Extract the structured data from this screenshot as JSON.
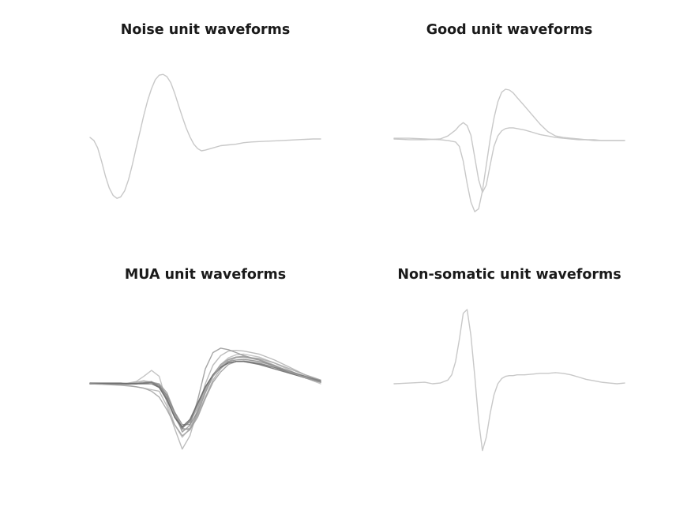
{
  "chart_data": [
    {
      "type": "line",
      "title": "Noise unit waveforms",
      "axes_visible": false,
      "xlim": [
        0,
        60
      ],
      "ylim": [
        -1.0,
        1.0
      ],
      "series": [
        {
          "color": "#c8c8c8",
          "x": [
            0,
            1,
            2,
            3,
            4,
            5,
            6,
            7,
            8,
            9,
            10,
            11,
            12,
            13,
            14,
            15,
            16,
            17,
            18,
            19,
            20,
            21,
            22,
            23,
            24,
            25,
            26,
            27,
            28,
            29,
            30,
            32,
            34,
            36,
            38,
            40,
            42,
            44,
            46,
            48,
            50,
            52,
            54,
            56,
            58,
            60
          ],
          "values": [
            0.02,
            -0.02,
            -0.12,
            -0.3,
            -0.5,
            -0.66,
            -0.76,
            -0.8,
            -0.78,
            -0.7,
            -0.55,
            -0.35,
            -0.12,
            0.1,
            0.32,
            0.52,
            0.68,
            0.8,
            0.86,
            0.87,
            0.84,
            0.76,
            0.62,
            0.46,
            0.3,
            0.15,
            0.03,
            -0.07,
            -0.13,
            -0.16,
            -0.15,
            -0.12,
            -0.09,
            -0.08,
            -0.07,
            -0.05,
            -0.04,
            -0.035,
            -0.03,
            -0.025,
            -0.02,
            -0.015,
            -0.01,
            -0.005,
            0.0,
            0.0
          ]
        }
      ]
    },
    {
      "type": "line",
      "title": "Good unit waveforms",
      "axes_visible": false,
      "xlim": [
        0,
        60
      ],
      "ylim": [
        -1.0,
        1.0
      ],
      "series": [
        {
          "color": "#c8c8c8",
          "x": [
            0,
            4,
            8,
            12,
            14,
            16,
            17,
            18,
            19,
            20,
            21,
            22,
            23,
            24,
            25,
            26,
            27,
            28,
            29,
            30,
            31,
            32,
            34,
            36,
            38,
            40,
            42,
            44,
            46,
            48,
            50,
            52,
            54,
            56,
            58,
            60
          ],
          "values": [
            0.01,
            0.01,
            0.0,
            -0.01,
            -0.02,
            -0.04,
            -0.1,
            -0.3,
            -0.6,
            -0.85,
            -0.98,
            -0.94,
            -0.7,
            -0.35,
            0.0,
            0.28,
            0.5,
            0.63,
            0.67,
            0.66,
            0.62,
            0.56,
            0.44,
            0.32,
            0.2,
            0.1,
            0.04,
            0.02,
            0.01,
            0.0,
            -0.01,
            -0.01,
            -0.02,
            -0.02,
            -0.02,
            -0.02
          ]
        },
        {
          "color": "#c8c8c8",
          "x": [
            0,
            4,
            8,
            12,
            14,
            16,
            17,
            18,
            19,
            20,
            21,
            22,
            23,
            24,
            25,
            26,
            27,
            28,
            29,
            30,
            31,
            32,
            34,
            36,
            38,
            40,
            42,
            44,
            46,
            48,
            50,
            52,
            54,
            56,
            58,
            60
          ],
          "values": [
            0.0,
            -0.01,
            -0.01,
            0.0,
            0.04,
            0.12,
            0.18,
            0.22,
            0.18,
            0.05,
            -0.25,
            -0.55,
            -0.72,
            -0.62,
            -0.35,
            -0.1,
            0.04,
            0.11,
            0.14,
            0.15,
            0.15,
            0.14,
            0.12,
            0.09,
            0.06,
            0.04,
            0.02,
            0.01,
            0.0,
            -0.01,
            -0.01,
            -0.02,
            -0.02,
            -0.02,
            -0.02,
            -0.02
          ]
        }
      ]
    },
    {
      "type": "line",
      "title": "MUA unit waveforms",
      "axes_visible": false,
      "xlim": [
        0,
        60
      ],
      "ylim": [
        -1.0,
        1.0
      ],
      "series": [
        {
          "color": "#bbbbbb",
          "x": [
            0,
            4,
            8,
            10,
            12,
            14,
            16,
            18,
            20,
            22,
            24,
            26,
            28,
            30,
            32,
            34,
            36,
            38,
            40,
            44,
            48,
            52,
            56,
            60
          ],
          "values": [
            0.0,
            0.0,
            0.0,
            0.01,
            0.03,
            0.1,
            0.18,
            0.1,
            -0.25,
            -0.55,
            -0.72,
            -0.6,
            -0.35,
            -0.1,
            0.12,
            0.26,
            0.35,
            0.39,
            0.4,
            0.36,
            0.28,
            0.18,
            0.08,
            0.0
          ]
        },
        {
          "color": "#b0b0b0",
          "x": [
            0,
            4,
            8,
            10,
            12,
            14,
            16,
            18,
            20,
            22,
            24,
            26,
            28,
            30,
            32,
            34,
            36,
            38,
            40,
            44,
            48,
            52,
            56,
            60
          ],
          "values": [
            0.01,
            0.0,
            -0.01,
            -0.02,
            -0.04,
            -0.06,
            -0.08,
            -0.1,
            -0.3,
            -0.6,
            -0.88,
            -0.7,
            -0.35,
            0.0,
            0.25,
            0.38,
            0.44,
            0.45,
            0.44,
            0.4,
            0.32,
            0.22,
            0.12,
            0.05
          ]
        },
        {
          "color": "#a8a8a8",
          "x": [
            0,
            4,
            8,
            10,
            12,
            14,
            16,
            18,
            20,
            22,
            24,
            26,
            28,
            30,
            32,
            34,
            36,
            38,
            40,
            44,
            48,
            52,
            56,
            60
          ],
          "values": [
            0.0,
            0.0,
            0.0,
            0.01,
            0.02,
            0.04,
            0.02,
            -0.05,
            -0.2,
            -0.45,
            -0.62,
            -0.6,
            -0.42,
            -0.18,
            0.05,
            0.2,
            0.3,
            0.35,
            0.36,
            0.34,
            0.28,
            0.2,
            0.12,
            0.05
          ]
        },
        {
          "color": "#a0a0a0",
          "x": [
            0,
            4,
            8,
            10,
            12,
            14,
            16,
            18,
            20,
            22,
            24,
            26,
            28,
            30,
            32,
            34,
            36,
            38,
            40,
            44,
            48,
            52,
            56,
            60
          ],
          "values": [
            0.0,
            0.0,
            0.0,
            0.0,
            0.01,
            0.02,
            0.03,
            -0.02,
            -0.18,
            -0.42,
            -0.58,
            -0.52,
            -0.32,
            -0.08,
            0.12,
            0.26,
            0.33,
            0.36,
            0.36,
            0.32,
            0.24,
            0.16,
            0.08,
            0.02
          ]
        },
        {
          "color": "#999999",
          "x": [
            0,
            4,
            8,
            10,
            12,
            14,
            16,
            18,
            20,
            22,
            24,
            26,
            28,
            30,
            32,
            34,
            36,
            38,
            40,
            44,
            48,
            52,
            56,
            60
          ],
          "values": [
            0.0,
            0.0,
            0.0,
            0.0,
            0.0,
            0.01,
            0.02,
            0.0,
            -0.12,
            -0.38,
            -0.6,
            -0.62,
            -0.45,
            -0.2,
            0.02,
            0.16,
            0.26,
            0.3,
            0.31,
            0.28,
            0.22,
            0.15,
            0.08,
            0.02
          ]
        },
        {
          "color": "#949494",
          "x": [
            0,
            4,
            8,
            10,
            12,
            14,
            16,
            18,
            20,
            22,
            24,
            26,
            28,
            30,
            32,
            34,
            36,
            38,
            40,
            44,
            48,
            52,
            56,
            60
          ],
          "values": [
            0.0,
            0.0,
            0.0,
            0.0,
            0.0,
            0.01,
            0.02,
            -0.02,
            -0.15,
            -0.4,
            -0.65,
            -0.56,
            -0.22,
            0.2,
            0.42,
            0.48,
            0.46,
            0.42,
            0.38,
            0.32,
            0.24,
            0.15,
            0.08,
            0.03
          ]
        },
        {
          "color": "#8a8a8a",
          "x": [
            0,
            4,
            8,
            10,
            12,
            14,
            16,
            18,
            20,
            22,
            24,
            26,
            28,
            30,
            32,
            34,
            36,
            38,
            40,
            44,
            48,
            52,
            56,
            60
          ],
          "values": [
            0.0,
            0.0,
            0.0,
            0.0,
            0.0,
            0.01,
            0.02,
            -0.02,
            -0.16,
            -0.38,
            -0.55,
            -0.55,
            -0.38,
            -0.12,
            0.1,
            0.22,
            0.3,
            0.32,
            0.33,
            0.3,
            0.24,
            0.17,
            0.1,
            0.03
          ]
        },
        {
          "color": "#7a7a7a",
          "x": [
            0,
            4,
            8,
            10,
            12,
            14,
            16,
            18,
            20,
            22,
            24,
            26,
            28,
            30,
            32,
            34,
            36,
            38,
            40,
            44,
            48,
            52,
            56,
            60
          ],
          "values": [
            0.0,
            0.0,
            0.0,
            0.0,
            0.0,
            0.01,
            0.02,
            -0.04,
            -0.2,
            -0.45,
            -0.6,
            -0.5,
            -0.28,
            -0.05,
            0.12,
            0.22,
            0.28,
            0.3,
            0.3,
            0.27,
            0.22,
            0.16,
            0.1,
            0.04
          ]
        },
        {
          "color": "#6a6a6a",
          "x": [
            0,
            4,
            8,
            10,
            12,
            14,
            16,
            18,
            20,
            22,
            24,
            26,
            28,
            30,
            32,
            34,
            36,
            38,
            40,
            44,
            48,
            52,
            56,
            60
          ],
          "values": [
            0.01,
            0.01,
            0.01,
            0.0,
            0.0,
            0.0,
            0.0,
            -0.05,
            -0.22,
            -0.45,
            -0.58,
            -0.48,
            -0.26,
            -0.04,
            0.12,
            0.22,
            0.28,
            0.3,
            0.3,
            0.26,
            0.2,
            0.14,
            0.08,
            0.02
          ]
        },
        {
          "color": "#a0a0a0",
          "x": [
            0,
            4,
            8,
            10,
            12,
            14,
            16,
            18,
            20,
            22,
            24,
            26,
            28,
            30,
            32,
            34,
            36,
            38,
            40,
            44,
            48,
            52,
            56,
            60
          ],
          "values": [
            0.0,
            -0.01,
            -0.02,
            -0.03,
            -0.04,
            -0.06,
            -0.1,
            -0.18,
            -0.35,
            -0.55,
            -0.7,
            -0.62,
            -0.4,
            -0.12,
            0.1,
            0.24,
            0.32,
            0.36,
            0.37,
            0.33,
            0.25,
            0.16,
            0.08,
            0.02
          ]
        }
      ]
    },
    {
      "type": "line",
      "title": "Non-somatic unit waveforms",
      "axes_visible": false,
      "xlim": [
        0,
        60
      ],
      "ylim": [
        -1.0,
        1.0
      ],
      "series": [
        {
          "color": "#c8c8c8",
          "x": [
            0,
            4,
            8,
            10,
            12,
            14,
            15,
            16,
            17,
            18,
            19,
            20,
            21,
            22,
            23,
            24,
            25,
            26,
            27,
            28,
            29,
            30,
            31,
            32,
            34,
            36,
            38,
            40,
            42,
            44,
            46,
            48,
            50,
            52,
            54,
            56,
            58,
            60
          ],
          "values": [
            0.0,
            0.01,
            0.02,
            0.0,
            0.01,
            0.05,
            0.12,
            0.3,
            0.6,
            0.95,
            1.0,
            0.65,
            0.1,
            -0.5,
            -0.9,
            -0.72,
            -0.4,
            -0.15,
            0.0,
            0.07,
            0.1,
            0.11,
            0.11,
            0.12,
            0.12,
            0.13,
            0.14,
            0.14,
            0.15,
            0.14,
            0.12,
            0.09,
            0.06,
            0.04,
            0.02,
            0.01,
            0.0,
            0.01
          ]
        }
      ]
    }
  ]
}
